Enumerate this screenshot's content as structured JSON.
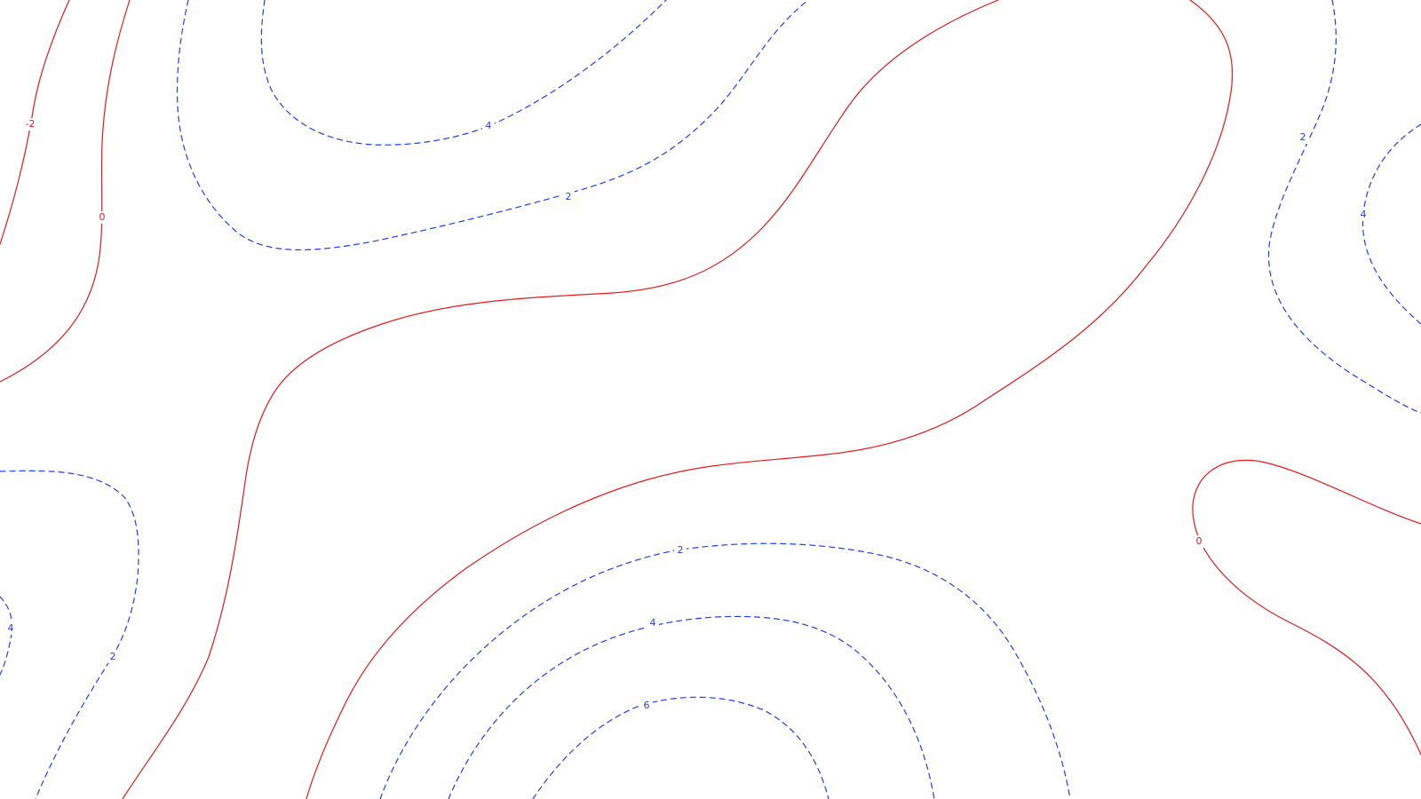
{
  "chart_data": {
    "type": "contour",
    "grid": false,
    "legend": "none",
    "colors": {
      "positive": "#1f3cff",
      "zero_or_negative": "#e41a1c"
    },
    "levels_drawn": [
      -2,
      0,
      2,
      4,
      6
    ],
    "line_styles": {
      "negative_and_zero": "solid",
      "positive": "dashed"
    },
    "contours": [
      {
        "level": -2,
        "label": "-2",
        "color": "#e41a1c",
        "style": "solid"
      },
      {
        "level": 0,
        "label": "0",
        "color": "#e41a1c",
        "style": "solid"
      },
      {
        "level": 0,
        "label": "",
        "color": "#e41a1c",
        "style": "solid"
      },
      {
        "level": 0,
        "label": "",
        "color": "#e41a1c",
        "style": "solid"
      },
      {
        "level": 0,
        "label": "0",
        "color": "#e41a1c",
        "style": "solid"
      },
      {
        "level": 2,
        "label": "2",
        "color": "#1f3cff",
        "style": "dashed"
      },
      {
        "level": 4,
        "label": "4",
        "color": "#1f3cff",
        "style": "dashed"
      },
      {
        "level": 2,
        "label": "2",
        "color": "#1f3cff",
        "style": "dashed"
      },
      {
        "level": 4,
        "label": "4",
        "color": "#1f3cff",
        "style": "dashed"
      },
      {
        "level": 2,
        "label": "2",
        "color": "#1f3cff",
        "style": "dashed"
      },
      {
        "level": 4,
        "label": "4",
        "color": "#1f3cff",
        "style": "dashed"
      },
      {
        "level": 2,
        "label": "2",
        "color": "#1f3cff",
        "style": "dashed"
      },
      {
        "level": 4,
        "label": "4",
        "color": "#1f3cff",
        "style": "dashed"
      },
      {
        "level": 6,
        "label": "6",
        "color": "#1f3cff",
        "style": "dashed"
      }
    ]
  }
}
